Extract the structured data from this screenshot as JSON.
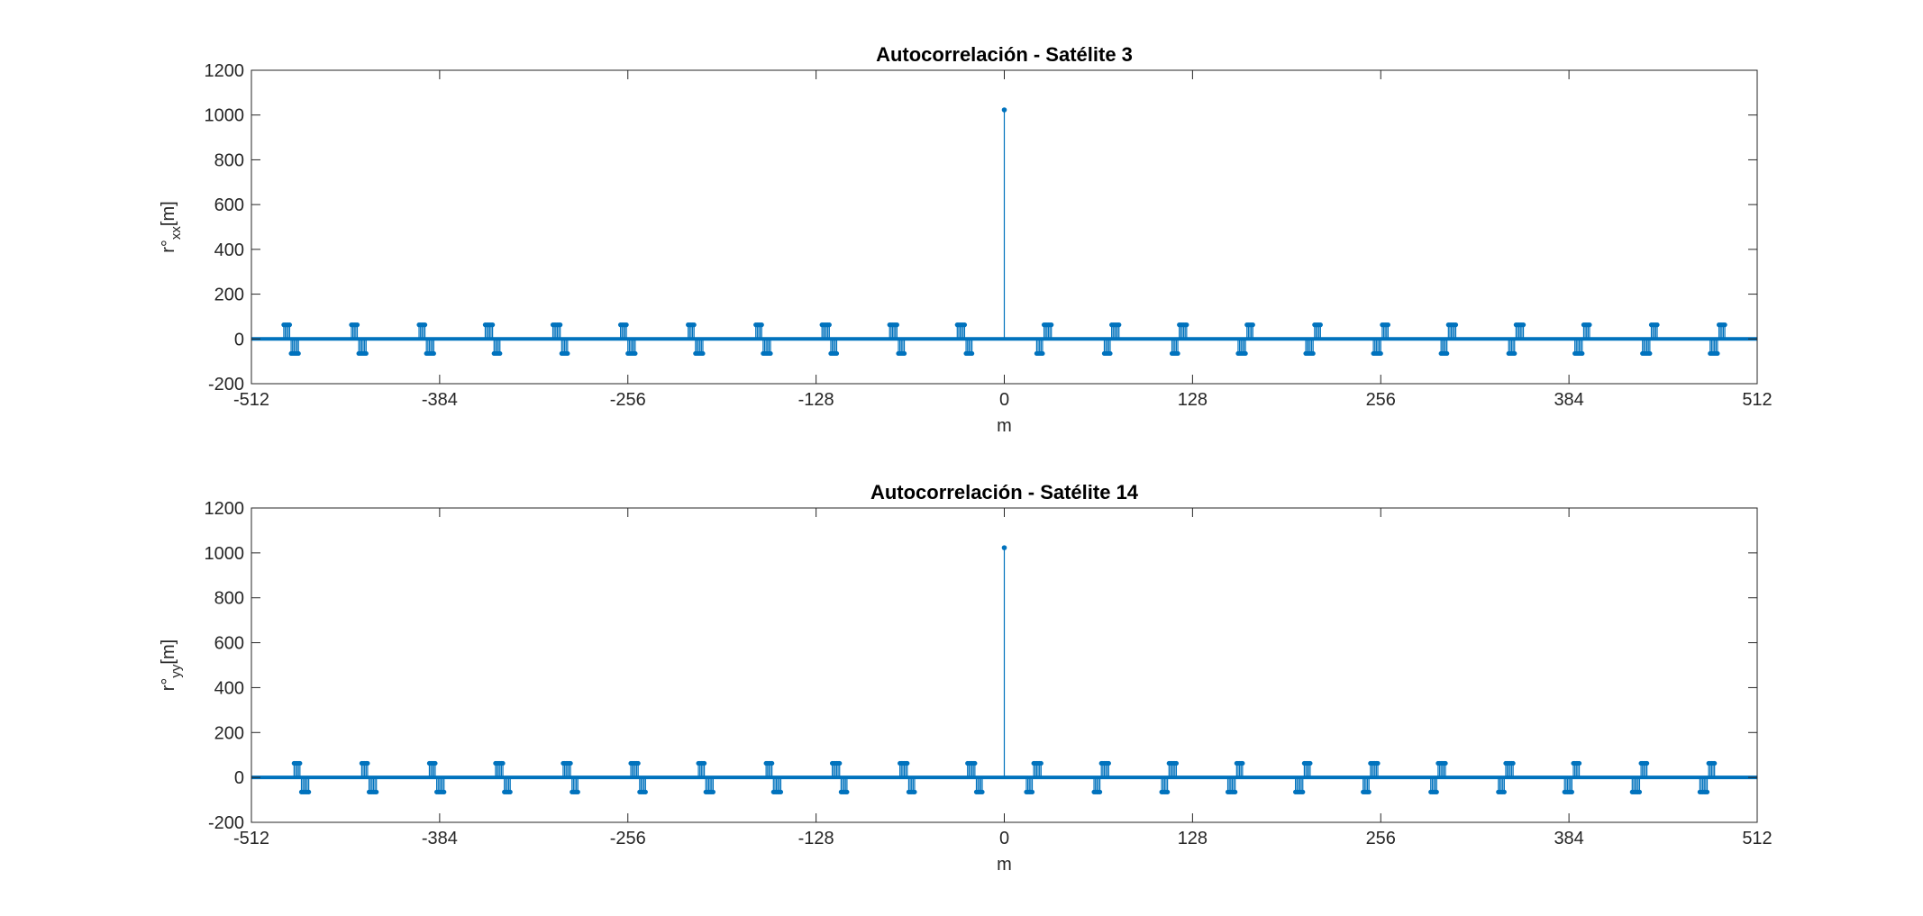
{
  "colors": {
    "series": "#0072BD",
    "axes": "#262626",
    "background": "#ffffff"
  },
  "chart_data": [
    {
      "type": "stem",
      "title": "Autocorrelación - Satélite 3",
      "xlabel": "m",
      "ylabel": "r°",
      "ylabel_sub": "xx",
      "ylabel_suffix": "[m]",
      "xlim": [
        -512,
        512
      ],
      "ylim": [
        -200,
        1200
      ],
      "xticks": [
        -512,
        -384,
        -256,
        -128,
        0,
        128,
        256,
        384,
        512
      ],
      "yticks": [
        -200,
        0,
        200,
        400,
        600,
        800,
        1000,
        1200
      ],
      "grid": false,
      "baseline": 0,
      "peak": {
        "x": 0,
        "y": 1023
      },
      "off_peak_values": [
        -65,
        63
      ],
      "x_range": [
        -511,
        511
      ]
    },
    {
      "type": "stem",
      "title": "Autocorrelación - Satélite 14",
      "xlabel": "m",
      "ylabel": "r°",
      "ylabel_sub": "yy",
      "ylabel_suffix": "[m]",
      "xlim": [
        -512,
        512
      ],
      "ylim": [
        -200,
        1200
      ],
      "xticks": [
        -512,
        -384,
        -256,
        -128,
        0,
        128,
        256,
        384,
        512
      ],
      "yticks": [
        -200,
        0,
        200,
        400,
        600,
        800,
        1000,
        1200
      ],
      "grid": false,
      "baseline": 0,
      "peak": {
        "x": 0,
        "y": 1023
      },
      "off_peak_values": [
        -65,
        63
      ],
      "x_range": [
        -511,
        511
      ]
    }
  ]
}
